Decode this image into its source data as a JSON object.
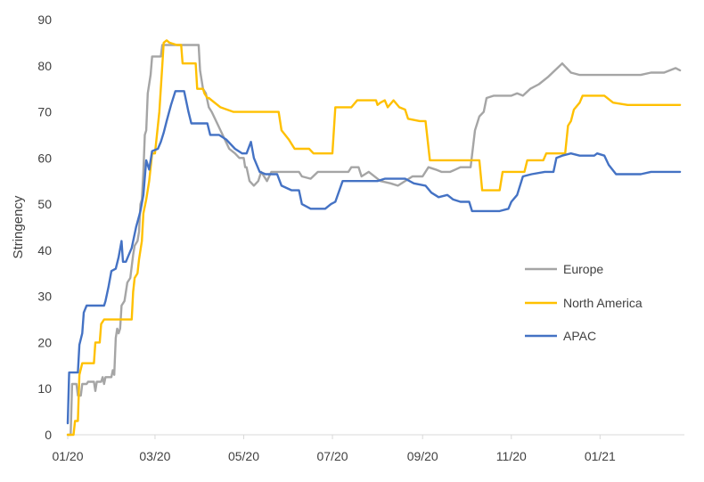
{
  "chart_data": {
    "type": "line",
    "title": "",
    "xlabel": "",
    "ylabel": "Stringency",
    "ylim": [
      0,
      90
    ],
    "yticks": [
      0,
      10,
      20,
      30,
      40,
      50,
      60,
      70,
      80,
      90
    ],
    "xlim": [
      "2020-01-01",
      "2021-02-28"
    ],
    "xticks": [
      {
        "date": "2020-01-01",
        "label": "01/20"
      },
      {
        "date": "2020-03-01",
        "label": "03/20"
      },
      {
        "date": "2020-05-01",
        "label": "05/20"
      },
      {
        "date": "2020-07-01",
        "label": "07/20"
      },
      {
        "date": "2020-09-01",
        "label": "09/20"
      },
      {
        "date": "2020-11-01",
        "label": "11/20"
      },
      {
        "date": "2021-01-01",
        "label": "01/21"
      }
    ],
    "grid": false,
    "legend_position": "right",
    "series": [
      {
        "name": "Europe",
        "color": "#a5a5a5",
        "points": [
          [
            "2020-01-01",
            0
          ],
          [
            "2020-01-03",
            0
          ],
          [
            "2020-01-04",
            11
          ],
          [
            "2020-01-07",
            11
          ],
          [
            "2020-01-08",
            8.5
          ],
          [
            "2020-01-10",
            8.5
          ],
          [
            "2020-01-11",
            11
          ],
          [
            "2020-01-14",
            11
          ],
          [
            "2020-01-15",
            11.5
          ],
          [
            "2020-01-19",
            11.5
          ],
          [
            "2020-01-20",
            9.5
          ],
          [
            "2020-01-21",
            11.5
          ],
          [
            "2020-01-24",
            11.5
          ],
          [
            "2020-01-25",
            12.5
          ],
          [
            "2020-01-26",
            11
          ],
          [
            "2020-01-27",
            12.5
          ],
          [
            "2020-01-31",
            12.5
          ],
          [
            "2020-02-01",
            14
          ],
          [
            "2020-02-02",
            13
          ],
          [
            "2020-02-03",
            21
          ],
          [
            "2020-02-04",
            23
          ],
          [
            "2020-02-05",
            22
          ],
          [
            "2020-02-06",
            23
          ],
          [
            "2020-02-07",
            28
          ],
          [
            "2020-02-09",
            29
          ],
          [
            "2020-02-11",
            33
          ],
          [
            "2020-02-13",
            34
          ],
          [
            "2020-02-15",
            39
          ],
          [
            "2020-02-16",
            41
          ],
          [
            "2020-02-18",
            42
          ],
          [
            "2020-02-19",
            44
          ],
          [
            "2020-02-20",
            50
          ],
          [
            "2020-02-21",
            51
          ],
          [
            "2020-02-22",
            57
          ],
          [
            "2020-02-23",
            65
          ],
          [
            "2020-02-24",
            66
          ],
          [
            "2020-02-25",
            74
          ],
          [
            "2020-02-27",
            78
          ],
          [
            "2020-02-28",
            82
          ],
          [
            "2020-03-05",
            82
          ],
          [
            "2020-03-06",
            84.5
          ],
          [
            "2020-03-31",
            84.5
          ],
          [
            "2020-04-01",
            79
          ],
          [
            "2020-04-03",
            75
          ],
          [
            "2020-04-05",
            74
          ],
          [
            "2020-04-07",
            71
          ],
          [
            "2020-04-09",
            70
          ],
          [
            "2020-04-12",
            68
          ],
          [
            "2020-04-15",
            66
          ],
          [
            "2020-04-18",
            64
          ],
          [
            "2020-04-21",
            62
          ],
          [
            "2020-04-25",
            61
          ],
          [
            "2020-04-28",
            60
          ],
          [
            "2020-05-01",
            60
          ],
          [
            "2020-05-02",
            58
          ],
          [
            "2020-05-03",
            58
          ],
          [
            "2020-05-05",
            55
          ],
          [
            "2020-05-08",
            54
          ],
          [
            "2020-05-11",
            55
          ],
          [
            "2020-05-13",
            57
          ],
          [
            "2020-05-15",
            56
          ],
          [
            "2020-05-17",
            55
          ],
          [
            "2020-05-20",
            57
          ],
          [
            "2020-06-08",
            57
          ],
          [
            "2020-06-10",
            56
          ],
          [
            "2020-06-16",
            55.5
          ],
          [
            "2020-06-21",
            57
          ],
          [
            "2020-07-12",
            57
          ],
          [
            "2020-07-14",
            58
          ],
          [
            "2020-07-19",
            58
          ],
          [
            "2020-07-21",
            56
          ],
          [
            "2020-07-26",
            57
          ],
          [
            "2020-08-03",
            55
          ],
          [
            "2020-08-10",
            54.5
          ],
          [
            "2020-08-15",
            54
          ],
          [
            "2020-08-20",
            55
          ],
          [
            "2020-08-25",
            56
          ],
          [
            "2020-09-01",
            56
          ],
          [
            "2020-09-05",
            58
          ],
          [
            "2020-09-10",
            57.5
          ],
          [
            "2020-09-14",
            57
          ],
          [
            "2020-09-20",
            57
          ],
          [
            "2020-09-27",
            58
          ],
          [
            "2020-10-04",
            58
          ],
          [
            "2020-10-07",
            66
          ],
          [
            "2020-10-10",
            69
          ],
          [
            "2020-10-13",
            70
          ],
          [
            "2020-10-15",
            73
          ],
          [
            "2020-10-20",
            73.5
          ],
          [
            "2020-11-01",
            73.5
          ],
          [
            "2020-11-05",
            74
          ],
          [
            "2020-11-09",
            73.5
          ],
          [
            "2020-11-14",
            75
          ],
          [
            "2020-11-20",
            76
          ],
          [
            "2020-11-26",
            77.5
          ],
          [
            "2020-12-01",
            79
          ],
          [
            "2020-12-06",
            80.5
          ],
          [
            "2020-12-12",
            78.5
          ],
          [
            "2020-12-18",
            78
          ],
          [
            "2020-12-25",
            78
          ],
          [
            "2021-01-01",
            78
          ],
          [
            "2021-01-20",
            78
          ],
          [
            "2021-01-29",
            78
          ],
          [
            "2021-02-05",
            78.5
          ],
          [
            "2021-02-14",
            78.5
          ],
          [
            "2021-02-22",
            79.5
          ],
          [
            "2021-02-25",
            79
          ]
        ]
      },
      {
        "name": "North America",
        "color": "#ffc000",
        "points": [
          [
            "2020-01-01",
            0
          ],
          [
            "2020-01-05",
            0
          ],
          [
            "2020-01-06",
            3
          ],
          [
            "2020-01-08",
            3
          ],
          [
            "2020-01-09",
            13
          ],
          [
            "2020-01-11",
            15.5
          ],
          [
            "2020-01-19",
            15.5
          ],
          [
            "2020-01-20",
            20
          ],
          [
            "2020-01-23",
            20
          ],
          [
            "2020-01-24",
            24
          ],
          [
            "2020-01-26",
            25
          ],
          [
            "2020-02-14",
            25
          ],
          [
            "2020-02-15",
            31
          ],
          [
            "2020-02-16",
            34
          ],
          [
            "2020-02-18",
            35
          ],
          [
            "2020-02-19",
            38
          ],
          [
            "2020-02-21",
            42
          ],
          [
            "2020-02-22",
            48
          ],
          [
            "2020-02-24",
            51
          ],
          [
            "2020-02-26",
            55
          ],
          [
            "2020-02-28",
            61
          ],
          [
            "2020-03-01",
            61
          ],
          [
            "2020-03-04",
            70
          ],
          [
            "2020-03-06",
            80
          ],
          [
            "2020-03-07",
            85
          ],
          [
            "2020-03-09",
            85.5
          ],
          [
            "2020-03-11",
            85
          ],
          [
            "2020-03-16",
            84.5
          ],
          [
            "2020-03-19",
            84.5
          ],
          [
            "2020-03-20",
            80.5
          ],
          [
            "2020-03-29",
            80.5
          ],
          [
            "2020-03-30",
            75
          ],
          [
            "2020-04-03",
            75
          ],
          [
            "2020-04-04",
            74
          ],
          [
            "2020-04-06",
            73
          ],
          [
            "2020-04-07",
            73
          ],
          [
            "2020-04-15",
            71
          ],
          [
            "2020-04-24",
            70
          ],
          [
            "2020-05-25",
            70
          ],
          [
            "2020-05-27",
            66
          ],
          [
            "2020-06-01",
            64
          ],
          [
            "2020-06-05",
            62
          ],
          [
            "2020-06-15",
            62
          ],
          [
            "2020-06-18",
            61
          ],
          [
            "2020-07-01",
            61
          ],
          [
            "2020-07-03",
            71
          ],
          [
            "2020-07-14",
            71
          ],
          [
            "2020-07-18",
            72.5
          ],
          [
            "2020-07-31",
            72.5
          ],
          [
            "2020-08-01",
            71.5
          ],
          [
            "2020-08-03",
            72
          ],
          [
            "2020-08-06",
            72.5
          ],
          [
            "2020-08-08",
            71
          ],
          [
            "2020-08-12",
            72.5
          ],
          [
            "2020-08-16",
            71
          ],
          [
            "2020-08-20",
            70.5
          ],
          [
            "2020-08-22",
            68.5
          ],
          [
            "2020-08-30",
            68
          ],
          [
            "2020-09-03",
            68
          ],
          [
            "2020-09-06",
            59.5
          ],
          [
            "2020-10-10",
            59.5
          ],
          [
            "2020-10-12",
            53
          ],
          [
            "2020-10-24",
            53
          ],
          [
            "2020-10-26",
            57
          ],
          [
            "2020-11-10",
            57
          ],
          [
            "2020-11-12",
            59.5
          ],
          [
            "2020-11-23",
            59.5
          ],
          [
            "2020-11-25",
            61
          ],
          [
            "2020-12-08",
            61
          ],
          [
            "2020-12-10",
            67
          ],
          [
            "2020-12-12",
            68
          ],
          [
            "2020-12-14",
            70.5
          ],
          [
            "2020-12-18",
            72
          ],
          [
            "2020-12-20",
            73.5
          ],
          [
            "2021-01-04",
            73.5
          ],
          [
            "2021-01-10",
            72
          ],
          [
            "2021-01-20",
            71.5
          ],
          [
            "2021-02-25",
            71.5
          ]
        ]
      },
      {
        "name": "APAC",
        "color": "#4472c4",
        "points": [
          [
            "2020-01-01",
            2.5
          ],
          [
            "2020-01-02",
            13.5
          ],
          [
            "2020-01-08",
            13.5
          ],
          [
            "2020-01-09",
            19.5
          ],
          [
            "2020-01-11",
            22
          ],
          [
            "2020-01-12",
            26.5
          ],
          [
            "2020-01-14",
            28
          ],
          [
            "2020-01-26",
            28
          ],
          [
            "2020-01-27",
            29
          ],
          [
            "2020-01-29",
            32
          ],
          [
            "2020-01-31",
            35.5
          ],
          [
            "2020-02-03",
            36
          ],
          [
            "2020-02-05",
            38.5
          ],
          [
            "2020-02-07",
            42
          ],
          [
            "2020-02-08",
            37.5
          ],
          [
            "2020-02-10",
            37.5
          ],
          [
            "2020-02-12",
            39
          ],
          [
            "2020-02-14",
            40.5
          ],
          [
            "2020-02-17",
            45
          ],
          [
            "2020-02-20",
            48.5
          ],
          [
            "2020-02-22",
            52
          ],
          [
            "2020-02-24",
            59.5
          ],
          [
            "2020-02-26",
            57.5
          ],
          [
            "2020-02-28",
            61.5
          ],
          [
            "2020-03-03",
            62
          ],
          [
            "2020-03-05",
            63.5
          ],
          [
            "2020-03-07",
            65.5
          ],
          [
            "2020-03-09",
            68
          ],
          [
            "2020-03-12",
            71.5
          ],
          [
            "2020-03-15",
            74.5
          ],
          [
            "2020-03-21",
            74.5
          ],
          [
            "2020-03-24",
            70
          ],
          [
            "2020-03-26",
            67.5
          ],
          [
            "2020-04-06",
            67.5
          ],
          [
            "2020-04-08",
            65
          ],
          [
            "2020-04-14",
            65
          ],
          [
            "2020-04-19",
            64
          ],
          [
            "2020-04-25",
            62
          ],
          [
            "2020-04-30",
            61
          ],
          [
            "2020-05-03",
            61
          ],
          [
            "2020-05-06",
            63.5
          ],
          [
            "2020-05-08",
            60
          ],
          [
            "2020-05-12",
            57
          ],
          [
            "2020-05-16",
            56.5
          ],
          [
            "2020-05-24",
            56.5
          ],
          [
            "2020-05-27",
            54
          ],
          [
            "2020-06-03",
            53
          ],
          [
            "2020-06-08",
            53
          ],
          [
            "2020-06-10",
            50
          ],
          [
            "2020-06-13",
            49.5
          ],
          [
            "2020-06-16",
            49
          ],
          [
            "2020-06-26",
            49
          ],
          [
            "2020-06-30",
            50
          ],
          [
            "2020-07-03",
            50.5
          ],
          [
            "2020-07-08",
            55
          ],
          [
            "2020-07-14",
            55
          ],
          [
            "2020-07-21",
            55
          ],
          [
            "2020-08-01",
            55
          ],
          [
            "2020-08-06",
            55.5
          ],
          [
            "2020-08-20",
            55.5
          ],
          [
            "2020-08-26",
            54.5
          ],
          [
            "2020-09-03",
            54
          ],
          [
            "2020-09-07",
            52.5
          ],
          [
            "2020-09-12",
            51.5
          ],
          [
            "2020-09-18",
            52
          ],
          [
            "2020-09-22",
            51
          ],
          [
            "2020-09-27",
            50.5
          ],
          [
            "2020-10-03",
            50.5
          ],
          [
            "2020-10-05",
            48.5
          ],
          [
            "2020-10-24",
            48.5
          ],
          [
            "2020-10-30",
            49
          ],
          [
            "2020-11-01",
            50.5
          ],
          [
            "2020-11-05",
            52
          ],
          [
            "2020-11-09",
            56
          ],
          [
            "2020-11-15",
            56.5
          ],
          [
            "2020-11-24",
            57
          ],
          [
            "2020-11-30",
            57
          ],
          [
            "2020-12-02",
            60
          ],
          [
            "2020-12-06",
            60.5
          ],
          [
            "2020-12-12",
            61
          ],
          [
            "2020-12-18",
            60.5
          ],
          [
            "2020-12-28",
            60.5
          ],
          [
            "2020-12-30",
            61
          ],
          [
            "2021-01-04",
            60.5
          ],
          [
            "2021-01-07",
            58.5
          ],
          [
            "2021-01-12",
            56.5
          ],
          [
            "2021-01-29",
            56.5
          ],
          [
            "2021-02-05",
            57
          ],
          [
            "2021-02-25",
            57
          ]
        ]
      }
    ]
  }
}
